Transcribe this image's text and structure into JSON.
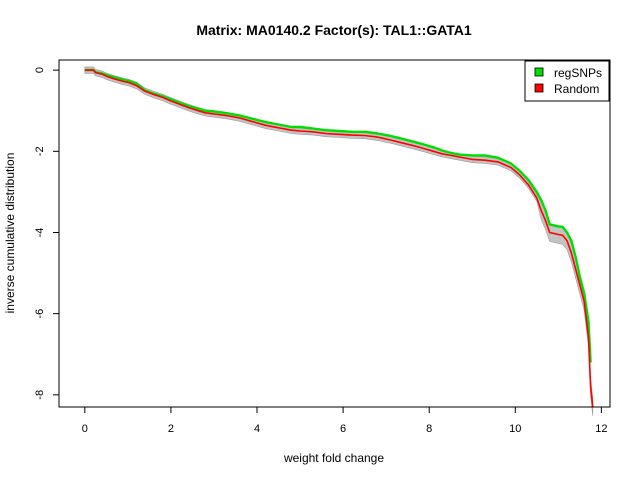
{
  "chart_data": {
    "type": "line",
    "title": "Matrix: MA0140.2 Factor(s): TAL1::GATA1",
    "xlabel": "weight fold change",
    "ylabel": "inverse cumulative distribution",
    "xlim": [
      -0.6,
      12.2
    ],
    "ylim": [
      -8.3,
      0.25
    ],
    "xticks": [
      0,
      2,
      4,
      6,
      8,
      10,
      12
    ],
    "yticks": [
      0,
      -2,
      -4,
      -6,
      -8
    ],
    "grid": false,
    "legend_position": "top-right",
    "series": [
      {
        "name": "regSNPs",
        "color": "#00dd00",
        "x": [
          0,
          0.2,
          0.25,
          0.4,
          0.5,
          0.7,
          0.9,
          1.0,
          1.2,
          1.4,
          1.6,
          1.8,
          2.0,
          2.2,
          2.4,
          2.6,
          2.8,
          3.0,
          3.3,
          3.6,
          3.9,
          4.2,
          4.5,
          4.8,
          5.0,
          5.3,
          5.6,
          5.9,
          6.2,
          6.5,
          6.8,
          7.1,
          7.4,
          7.7,
          7.9,
          8.1,
          8.3,
          8.5,
          8.7,
          9.0,
          9.3,
          9.6,
          9.9,
          10.1,
          10.3,
          10.5,
          10.6,
          10.7,
          10.8,
          11.0,
          11.1,
          11.2,
          11.3,
          11.4,
          11.5,
          11.6,
          11.7,
          11.75
        ],
        "y": [
          0,
          0,
          -0.05,
          -0.08,
          -0.12,
          -0.18,
          -0.24,
          -0.26,
          -0.33,
          -0.5,
          -0.58,
          -0.64,
          -0.72,
          -0.8,
          -0.88,
          -0.94,
          -1.0,
          -1.02,
          -1.06,
          -1.12,
          -1.2,
          -1.28,
          -1.34,
          -1.4,
          -1.4,
          -1.44,
          -1.48,
          -1.5,
          -1.52,
          -1.52,
          -1.56,
          -1.62,
          -1.7,
          -1.78,
          -1.84,
          -1.9,
          -1.98,
          -2.04,
          -2.08,
          -2.1,
          -2.1,
          -2.16,
          -2.3,
          -2.48,
          -2.7,
          -3.0,
          -3.2,
          -3.45,
          -3.8,
          -3.85,
          -3.86,
          -4.0,
          -4.2,
          -4.6,
          -5.1,
          -5.5,
          -6.2,
          -7.2
        ]
      },
      {
        "name": "Random",
        "color": "#ff0000",
        "x": [
          0,
          0.2,
          0.25,
          0.4,
          0.5,
          0.7,
          0.9,
          1.0,
          1.2,
          1.4,
          1.6,
          1.8,
          2.0,
          2.2,
          2.4,
          2.6,
          2.8,
          3.0,
          3.3,
          3.6,
          3.9,
          4.2,
          4.5,
          4.8,
          5.0,
          5.3,
          5.6,
          5.9,
          6.2,
          6.5,
          6.8,
          7.1,
          7.4,
          7.7,
          7.9,
          8.1,
          8.3,
          8.5,
          8.7,
          9.0,
          9.3,
          9.6,
          9.9,
          10.1,
          10.3,
          10.5,
          10.6,
          10.7,
          10.8,
          11.0,
          11.1,
          11.2,
          11.3,
          11.4,
          11.5,
          11.6,
          11.7,
          11.75,
          11.8
        ],
        "y": [
          0,
          0,
          -0.06,
          -0.1,
          -0.15,
          -0.22,
          -0.28,
          -0.3,
          -0.38,
          -0.52,
          -0.6,
          -0.67,
          -0.76,
          -0.84,
          -0.92,
          -0.99,
          -1.05,
          -1.08,
          -1.12,
          -1.18,
          -1.27,
          -1.36,
          -1.42,
          -1.48,
          -1.5,
          -1.52,
          -1.56,
          -1.58,
          -1.6,
          -1.61,
          -1.65,
          -1.72,
          -1.8,
          -1.88,
          -1.94,
          -2.0,
          -2.06,
          -2.1,
          -2.14,
          -2.2,
          -2.22,
          -2.26,
          -2.4,
          -2.58,
          -2.82,
          -3.15,
          -3.45,
          -3.7,
          -4.0,
          -4.05,
          -4.07,
          -4.2,
          -4.5,
          -4.9,
          -5.3,
          -5.7,
          -6.6,
          -7.8,
          -8.3
        ]
      }
    ]
  }
}
